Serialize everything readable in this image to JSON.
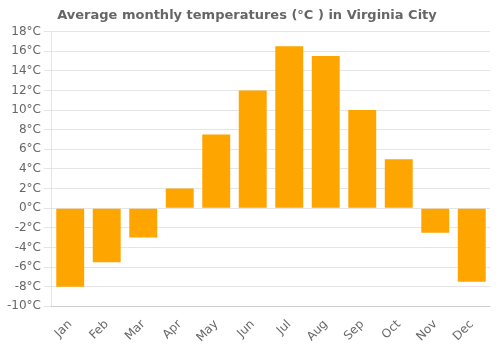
{
  "chart_data": {
    "type": "bar",
    "title": "Average monthly temperatures (°C ) in Virginia City",
    "categories": [
      "Jan",
      "Feb",
      "Mar",
      "Apr",
      "May",
      "Jun",
      "Jul",
      "Aug",
      "Sep",
      "Oct",
      "Nov",
      "Dec"
    ],
    "values": [
      -8.0,
      -5.5,
      -3.0,
      2.0,
      7.5,
      12.0,
      16.5,
      15.5,
      10.0,
      5.0,
      -2.5,
      -7.5
    ],
    "color": "#FFA500",
    "ylim": [
      -10,
      18
    ],
    "yticks": [
      {
        "value": -10,
        "label": "-10°C"
      },
      {
        "value": -8,
        "label": "-8°C"
      },
      {
        "value": -6,
        "label": "-6°C"
      },
      {
        "value": -4,
        "label": "-4°C"
      },
      {
        "value": -2,
        "label": "-2°C"
      },
      {
        "value": 0,
        "label": "0°C"
      },
      {
        "value": 2,
        "label": "2°C"
      },
      {
        "value": 4,
        "label": "4°C"
      },
      {
        "value": 6,
        "label": "6°C"
      },
      {
        "value": 8,
        "label": "8°C"
      },
      {
        "value": 10,
        "label": "10°C"
      },
      {
        "value": 12,
        "label": "12°C"
      },
      {
        "value": 14,
        "label": "14°C"
      },
      {
        "value": 16,
        "label": "16°C"
      },
      {
        "value": 18,
        "label": "18°C"
      }
    ],
    "grid": true
  }
}
